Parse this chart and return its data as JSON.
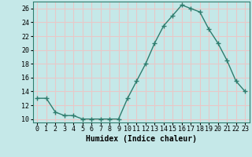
{
  "x": [
    0,
    1,
    2,
    3,
    4,
    5,
    6,
    7,
    8,
    9,
    10,
    11,
    12,
    13,
    14,
    15,
    16,
    17,
    18,
    19,
    20,
    21,
    22,
    23
  ],
  "y": [
    13,
    13,
    11,
    10.5,
    10.5,
    10,
    10,
    10,
    10,
    10,
    13,
    15.5,
    18,
    21,
    23.5,
    25,
    26.5,
    26,
    25.5,
    23,
    21,
    18.5,
    15.5,
    14
  ],
  "line_color": "#2e7d6e",
  "marker": "+",
  "background_color": "#c5e8e8",
  "grid_color": "#e8c8c8",
  "xlabel": "Humidex (Indice chaleur)",
  "ylim": [
    9.5,
    27
  ],
  "xlim": [
    -0.5,
    23.5
  ],
  "yticks": [
    10,
    12,
    14,
    16,
    18,
    20,
    22,
    24,
    26
  ],
  "xticks": [
    0,
    1,
    2,
    3,
    4,
    5,
    6,
    7,
    8,
    9,
    10,
    11,
    12,
    13,
    14,
    15,
    16,
    17,
    18,
    19,
    20,
    21,
    22,
    23
  ],
  "label_fontsize": 7,
  "tick_fontsize": 6
}
